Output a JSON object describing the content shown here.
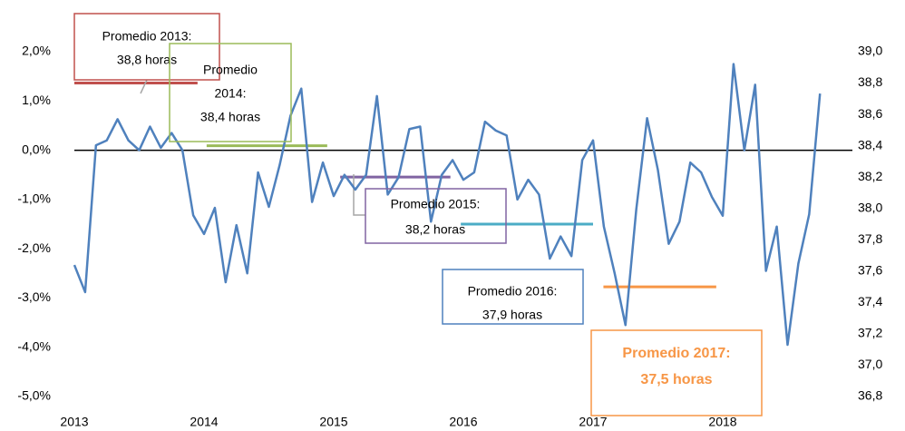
{
  "chart_data": {
    "type": "line",
    "x": [
      2013,
      2013.0833,
      2013.1667,
      2013.25,
      2013.3333,
      2013.4167,
      2013.5,
      2013.5833,
      2013.6667,
      2013.75,
      2013.8333,
      2013.9167,
      2014,
      2014.0833,
      2014.1667,
      2014.25,
      2014.3333,
      2014.4167,
      2014.5,
      2014.5833,
      2014.6667,
      2014.75,
      2014.8333,
      2014.9167,
      2015,
      2015.0833,
      2015.1667,
      2015.25,
      2015.3333,
      2015.4167,
      2015.5,
      2015.5833,
      2015.6667,
      2015.75,
      2015.8333,
      2015.9167,
      2016,
      2016.0833,
      2016.1667,
      2016.25,
      2016.3333,
      2016.4167,
      2016.5,
      2016.5833,
      2016.6667,
      2016.75,
      2016.8333,
      2016.9167,
      2017,
      2017.0833,
      2017.1667,
      2017.25,
      2017.3333,
      2017.4167,
      2017.5,
      2017.5833,
      2017.6667,
      2017.75,
      2017.8333,
      2017.9167,
      2018,
      2018.0833,
      2018.1667,
      2018.25,
      2018.3333,
      2018.4167,
      2018.5,
      2018.5833,
      2018.6667,
      2018.75
    ],
    "series": [
      {
        "color": "#4f81bd",
        "values": [
          -2.33,
          -2.88,
          0.1,
          0.2,
          0.63,
          0.2,
          0.0,
          0.48,
          0.05,
          0.35,
          0.0,
          -1.32,
          -1.7,
          -1.17,
          -2.68,
          -1.52,
          -2.5,
          -0.45,
          -1.15,
          -0.3,
          0.7,
          1.25,
          -1.05,
          -0.25,
          -0.93,
          -0.5,
          -0.8,
          -0.5,
          1.1,
          -0.9,
          -0.55,
          0.43,
          0.48,
          -1.45,
          -0.5,
          -0.2,
          -0.6,
          -0.45,
          0.58,
          0.4,
          0.3,
          -1.0,
          -0.6,
          -0.9,
          -2.2,
          -1.75,
          -2.15,
          -0.2,
          0.2,
          -1.55,
          -2.5,
          -3.55,
          -1.2,
          0.65,
          -0.4,
          -1.9,
          -1.45,
          -0.25,
          -0.45,
          -0.95,
          -1.33,
          1.75,
          0.0,
          1.33,
          -2.45,
          -1.55,
          -3.95,
          -2.3,
          -1.3,
          1.15
        ]
      }
    ],
    "averages": [
      {
        "lines": [
          "Promedio 2013:",
          "38,8 horas"
        ],
        "x": [
          2013,
          2013.95
        ],
        "value": 38.8,
        "color": "#c0504d"
      },
      {
        "lines": [
          "Promedio",
          "2014:",
          "38,4 horas"
        ],
        "x": [
          2014.02,
          2014.95
        ],
        "value": 38.4,
        "color": "#9bbb59"
      },
      {
        "lines": [
          "Promedio 2015:",
          "38,2 horas"
        ],
        "x": [
          2015.05,
          2015.9
        ],
        "value": 38.2,
        "color": "#8064a2"
      },
      {
        "lines": [
          "Promedio 2016:",
          "37,9 horas"
        ],
        "x": [
          2015.98,
          2017.0
        ],
        "value": 37.9,
        "color": "#4bacc6"
      },
      {
        "lines": [
          "Promedio 2017:",
          "37,5 horas"
        ],
        "x": [
          2017.08,
          2017.95
        ],
        "value": 37.5,
        "color": "#f79646"
      }
    ],
    "xlim": [
      2013,
      2019
    ],
    "xticks": [
      2013,
      2014,
      2015,
      2016,
      2017,
      2018
    ],
    "ylim": [
      -5,
      2
    ],
    "yticks": [
      {
        "value": 2,
        "label": "2,0%"
      },
      {
        "value": 1,
        "label": "1,0%"
      },
      {
        "value": 0,
        "label": "0,0%"
      },
      {
        "value": -1,
        "label": "-1,0%"
      },
      {
        "value": -2,
        "label": "-2,0%"
      },
      {
        "value": -3,
        "label": "-3,0%"
      },
      {
        "value": -4,
        "label": "-4,0%"
      },
      {
        "value": -5,
        "label": "-5,0%"
      }
    ],
    "y2lim": [
      36.8,
      39.0
    ],
    "y2ticks": [
      {
        "value": 39.0,
        "label": "39,0"
      },
      {
        "value": 38.8,
        "label": "38,8"
      },
      {
        "value": 38.6,
        "label": "38,6"
      },
      {
        "value": 38.4,
        "label": "38,4"
      },
      {
        "value": 38.2,
        "label": "38,2"
      },
      {
        "value": 38.0,
        "label": "38,0"
      },
      {
        "value": 37.8,
        "label": "37,8"
      },
      {
        "value": 37.6,
        "label": "37,6"
      },
      {
        "value": 37.4,
        "label": "37,4"
      },
      {
        "value": 37.2,
        "label": "37,2"
      },
      {
        "value": 37.0,
        "label": "37,0"
      },
      {
        "value": 36.8,
        "label": "36,8"
      }
    ]
  }
}
